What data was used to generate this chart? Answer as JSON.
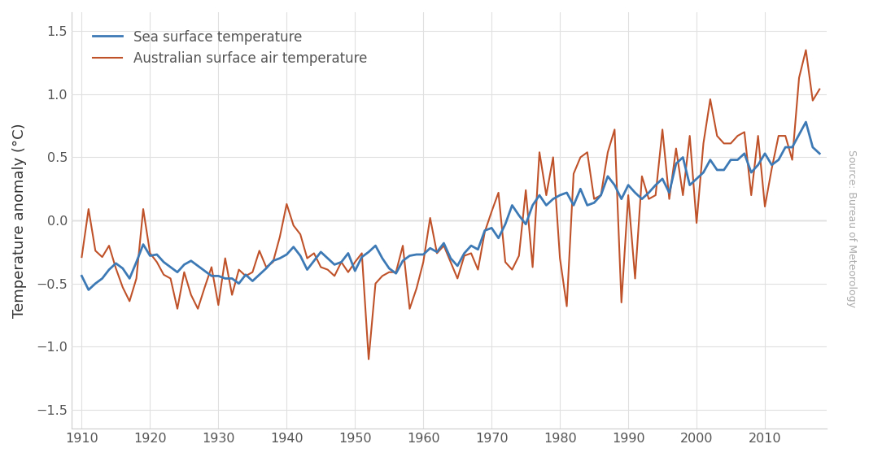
{
  "title": "",
  "ylabel": "Temperature anomaly (°C)",
  "source_text": "Source: Bureau of Meteorology",
  "sea_surface_color": "#3d7ab5",
  "air_temp_color": "#c0522a",
  "background_color": "#ffffff",
  "zero_line_color": "#999999",
  "grid_color": "#e0e0e0",
  "ylim": [
    -1.65,
    1.65
  ],
  "xlim": [
    1908.5,
    2019
  ],
  "yticks": [
    -1.5,
    -1.0,
    -0.5,
    0.0,
    0.5,
    1.0,
    1.5
  ],
  "xticks": [
    1910,
    1920,
    1930,
    1940,
    1950,
    1960,
    1970,
    1980,
    1990,
    2000,
    2010
  ],
  "legend_sea": "Sea surface temperature",
  "legend_air": "Australian surface air temperature",
  "sea_surface_years": [
    1910,
    1911,
    1912,
    1913,
    1914,
    1915,
    1916,
    1917,
    1918,
    1919,
    1920,
    1921,
    1922,
    1923,
    1924,
    1925,
    1926,
    1927,
    1928,
    1929,
    1930,
    1931,
    1932,
    1933,
    1934,
    1935,
    1936,
    1937,
    1938,
    1939,
    1940,
    1941,
    1942,
    1943,
    1944,
    1945,
    1946,
    1947,
    1948,
    1949,
    1950,
    1951,
    1952,
    1953,
    1954,
    1955,
    1956,
    1957,
    1958,
    1959,
    1960,
    1961,
    1962,
    1963,
    1964,
    1965,
    1966,
    1967,
    1968,
    1969,
    1970,
    1971,
    1972,
    1973,
    1974,
    1975,
    1976,
    1977,
    1978,
    1979,
    1980,
    1981,
    1982,
    1983,
    1984,
    1985,
    1986,
    1987,
    1988,
    1989,
    1990,
    1991,
    1992,
    1993,
    1994,
    1995,
    1996,
    1997,
    1998,
    1999,
    2000,
    2001,
    2002,
    2003,
    2004,
    2005,
    2006,
    2007,
    2008,
    2009,
    2010,
    2011,
    2012,
    2013,
    2014,
    2015,
    2016,
    2017,
    2018
  ],
  "sea_surface_values": [
    -0.44,
    -0.55,
    -0.5,
    -0.46,
    -0.39,
    -0.34,
    -0.38,
    -0.46,
    -0.33,
    -0.19,
    -0.28,
    -0.27,
    -0.33,
    -0.37,
    -0.41,
    -0.35,
    -0.32,
    -0.36,
    -0.4,
    -0.44,
    -0.44,
    -0.46,
    -0.46,
    -0.5,
    -0.43,
    -0.48,
    -0.43,
    -0.38,
    -0.32,
    -0.3,
    -0.27,
    -0.21,
    -0.28,
    -0.39,
    -0.32,
    -0.25,
    -0.3,
    -0.35,
    -0.33,
    -0.26,
    -0.4,
    -0.29,
    -0.25,
    -0.2,
    -0.3,
    -0.38,
    -0.42,
    -0.32,
    -0.28,
    -0.27,
    -0.27,
    -0.22,
    -0.25,
    -0.18,
    -0.3,
    -0.36,
    -0.26,
    -0.2,
    -0.23,
    -0.08,
    -0.06,
    -0.14,
    -0.03,
    0.12,
    0.04,
    -0.03,
    0.12,
    0.2,
    0.12,
    0.17,
    0.2,
    0.22,
    0.12,
    0.25,
    0.12,
    0.14,
    0.2,
    0.35,
    0.28,
    0.17,
    0.28,
    0.22,
    0.17,
    0.22,
    0.28,
    0.33,
    0.22,
    0.45,
    0.5,
    0.28,
    0.33,
    0.38,
    0.48,
    0.4,
    0.4,
    0.48,
    0.48,
    0.53,
    0.38,
    0.44,
    0.53,
    0.44,
    0.48,
    0.58,
    0.58,
    0.68,
    0.78,
    0.58,
    0.53
  ],
  "air_temp_years": [
    1910,
    1911,
    1912,
    1913,
    1914,
    1915,
    1916,
    1917,
    1918,
    1919,
    1920,
    1921,
    1922,
    1923,
    1924,
    1925,
    1926,
    1927,
    1928,
    1929,
    1930,
    1931,
    1932,
    1933,
    1934,
    1935,
    1936,
    1937,
    1938,
    1939,
    1940,
    1941,
    1942,
    1943,
    1944,
    1945,
    1946,
    1947,
    1948,
    1949,
    1950,
    1951,
    1952,
    1953,
    1954,
    1955,
    1956,
    1957,
    1958,
    1959,
    1960,
    1961,
    1962,
    1963,
    1964,
    1965,
    1966,
    1967,
    1968,
    1969,
    1970,
    1971,
    1972,
    1973,
    1974,
    1975,
    1976,
    1977,
    1978,
    1979,
    1980,
    1981,
    1982,
    1983,
    1984,
    1985,
    1986,
    1987,
    1988,
    1989,
    1990,
    1991,
    1992,
    1993,
    1994,
    1995,
    1996,
    1997,
    1998,
    1999,
    2000,
    2001,
    2002,
    2003,
    2004,
    2005,
    2006,
    2007,
    2008,
    2009,
    2010,
    2011,
    2012,
    2013,
    2014,
    2015,
    2016,
    2017,
    2018
  ],
  "air_temp_values": [
    -0.29,
    0.09,
    -0.24,
    -0.29,
    -0.2,
    -0.38,
    -0.53,
    -0.64,
    -0.46,
    0.09,
    -0.26,
    -0.33,
    -0.43,
    -0.46,
    -0.7,
    -0.41,
    -0.59,
    -0.7,
    -0.53,
    -0.37,
    -0.67,
    -0.3,
    -0.59,
    -0.39,
    -0.44,
    -0.41,
    -0.24,
    -0.37,
    -0.33,
    -0.13,
    0.13,
    -0.04,
    -0.11,
    -0.3,
    -0.26,
    -0.37,
    -0.39,
    -0.44,
    -0.33,
    -0.41,
    -0.33,
    -0.26,
    -1.1,
    -0.5,
    -0.44,
    -0.41,
    -0.41,
    -0.2,
    -0.7,
    -0.54,
    -0.33,
    0.02,
    -0.26,
    -0.2,
    -0.33,
    -0.46,
    -0.28,
    -0.26,
    -0.39,
    -0.09,
    0.07,
    0.22,
    -0.33,
    -0.39,
    -0.28,
    0.24,
    -0.37,
    0.54,
    0.2,
    0.5,
    -0.3,
    -0.68,
    0.37,
    0.5,
    0.54,
    0.17,
    0.2,
    0.54,
    0.72,
    -0.65,
    0.2,
    -0.46,
    0.35,
    0.17,
    0.2,
    0.72,
    0.17,
    0.57,
    0.2,
    0.67,
    -0.02,
    0.61,
    0.96,
    0.67,
    0.61,
    0.61,
    0.67,
    0.7,
    0.2,
    0.67,
    0.11,
    0.41,
    0.67,
    0.67,
    0.48,
    1.13,
    1.35,
    0.95,
    1.04
  ]
}
